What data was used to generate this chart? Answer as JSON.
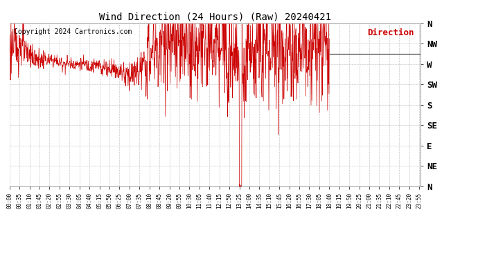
{
  "title": "Wind Direction (24 Hours) (Raw) 20240421",
  "copyright": "Copyright 2024 Cartronics.com",
  "legend_label": "Direction",
  "legend_color": "#cc0000",
  "line_color": "#cc0000",
  "flat_line_color": "#555555",
  "background_color": "#ffffff",
  "plot_bg_color": "#ffffff",
  "grid_color": "#bbbbbb",
  "ytick_labels": [
    "N",
    "NE",
    "E",
    "SE",
    "S",
    "SW",
    "W",
    "NW",
    "N"
  ],
  "ytick_values": [
    0,
    45,
    90,
    135,
    180,
    225,
    270,
    315,
    360
  ],
  "ylim": [
    0,
    360
  ],
  "xlim_min": -1,
  "xlim_max": 1439,
  "flat_line_start_minutes": 1120,
  "flat_line_value": 292,
  "xtick_start": -1,
  "xtick_step": 35
}
